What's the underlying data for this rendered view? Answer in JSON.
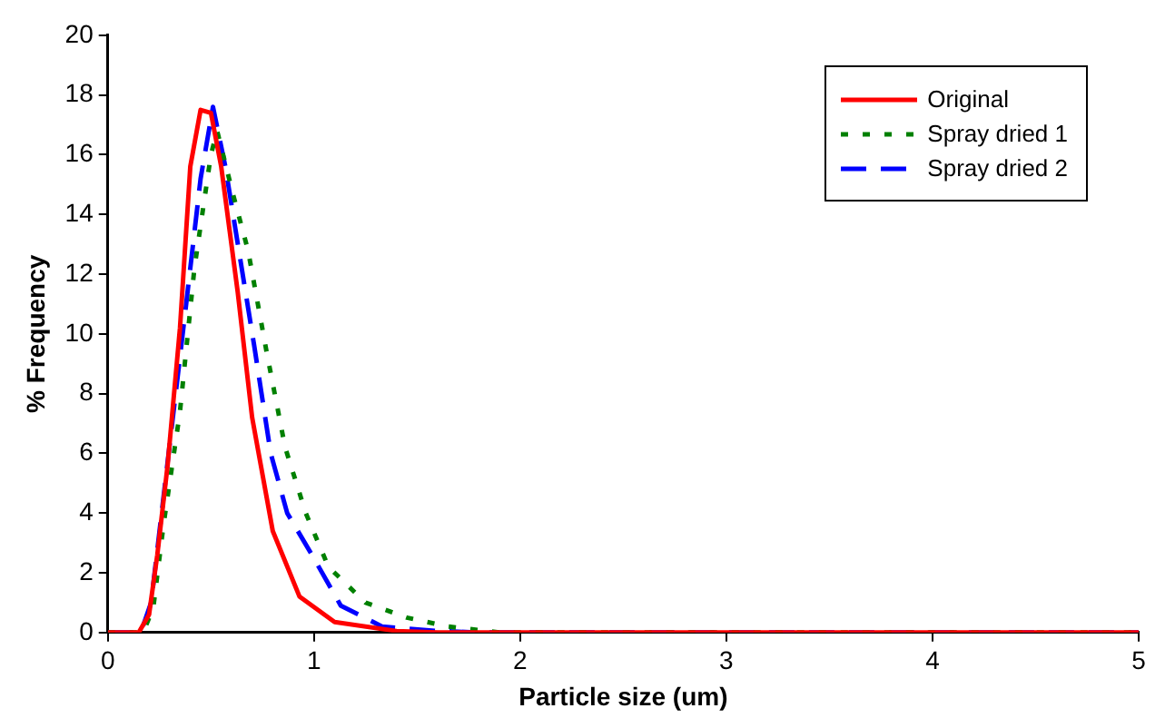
{
  "chart_data": {
    "type": "line",
    "xlabel": "Particle size (um)",
    "ylabel": "% Frequency",
    "xlim": [
      0,
      5
    ],
    "xticks": [
      0,
      1,
      2,
      3,
      4,
      5
    ],
    "ylim": [
      0,
      20
    ],
    "yticks": [
      0,
      2,
      4,
      6,
      8,
      10,
      12,
      14,
      16,
      18,
      20
    ],
    "grid": false,
    "legend": "top right",
    "marker": "none",
    "series": [
      {
        "name": "Original",
        "color": "#ff0000",
        "line_style": "solid",
        "x": [
          0,
          0.15,
          0.2,
          0.24,
          0.29,
          0.35,
          0.4,
          0.45,
          0.5,
          0.55,
          0.63,
          0.7,
          0.8,
          0.93,
          1.1,
          1.4,
          1.6,
          5
        ],
        "values": [
          0,
          0,
          0.6,
          2.6,
          5.6,
          10.2,
          15.6,
          17.5,
          17.4,
          15.6,
          11.4,
          7.2,
          3.4,
          1.2,
          0.35,
          0.05,
          0,
          0
        ]
      },
      {
        "name": "Spray dried 1",
        "color": "#008000",
        "line_style": "dotted",
        "x": [
          0,
          0.17,
          0.22,
          0.27,
          0.35,
          0.42,
          0.5,
          0.53,
          0.61,
          0.68,
          0.77,
          0.86,
          0.96,
          1.07,
          1.25,
          1.45,
          1.65,
          1.9,
          5
        ],
        "values": [
          0,
          0,
          0.8,
          3.6,
          7.4,
          12.2,
          16,
          16.8,
          14.6,
          12.8,
          9.4,
          6.2,
          4,
          2.2,
          1,
          0.5,
          0.2,
          0,
          0
        ]
      },
      {
        "name": "Spray dried 2",
        "color": "#0000ff",
        "line_style": "dashed",
        "x": [
          0,
          0.16,
          0.21,
          0.38,
          0.45,
          0.51,
          0.57,
          0.64,
          0.71,
          0.79,
          0.87,
          0.99,
          1.13,
          1.33,
          1.6,
          1.8,
          5
        ],
        "values": [
          0,
          0,
          1,
          11,
          15.2,
          17.6,
          15.6,
          12.6,
          9.6,
          6,
          4,
          2.6,
          0.9,
          0.2,
          0.05,
          0,
          0
        ]
      }
    ]
  }
}
